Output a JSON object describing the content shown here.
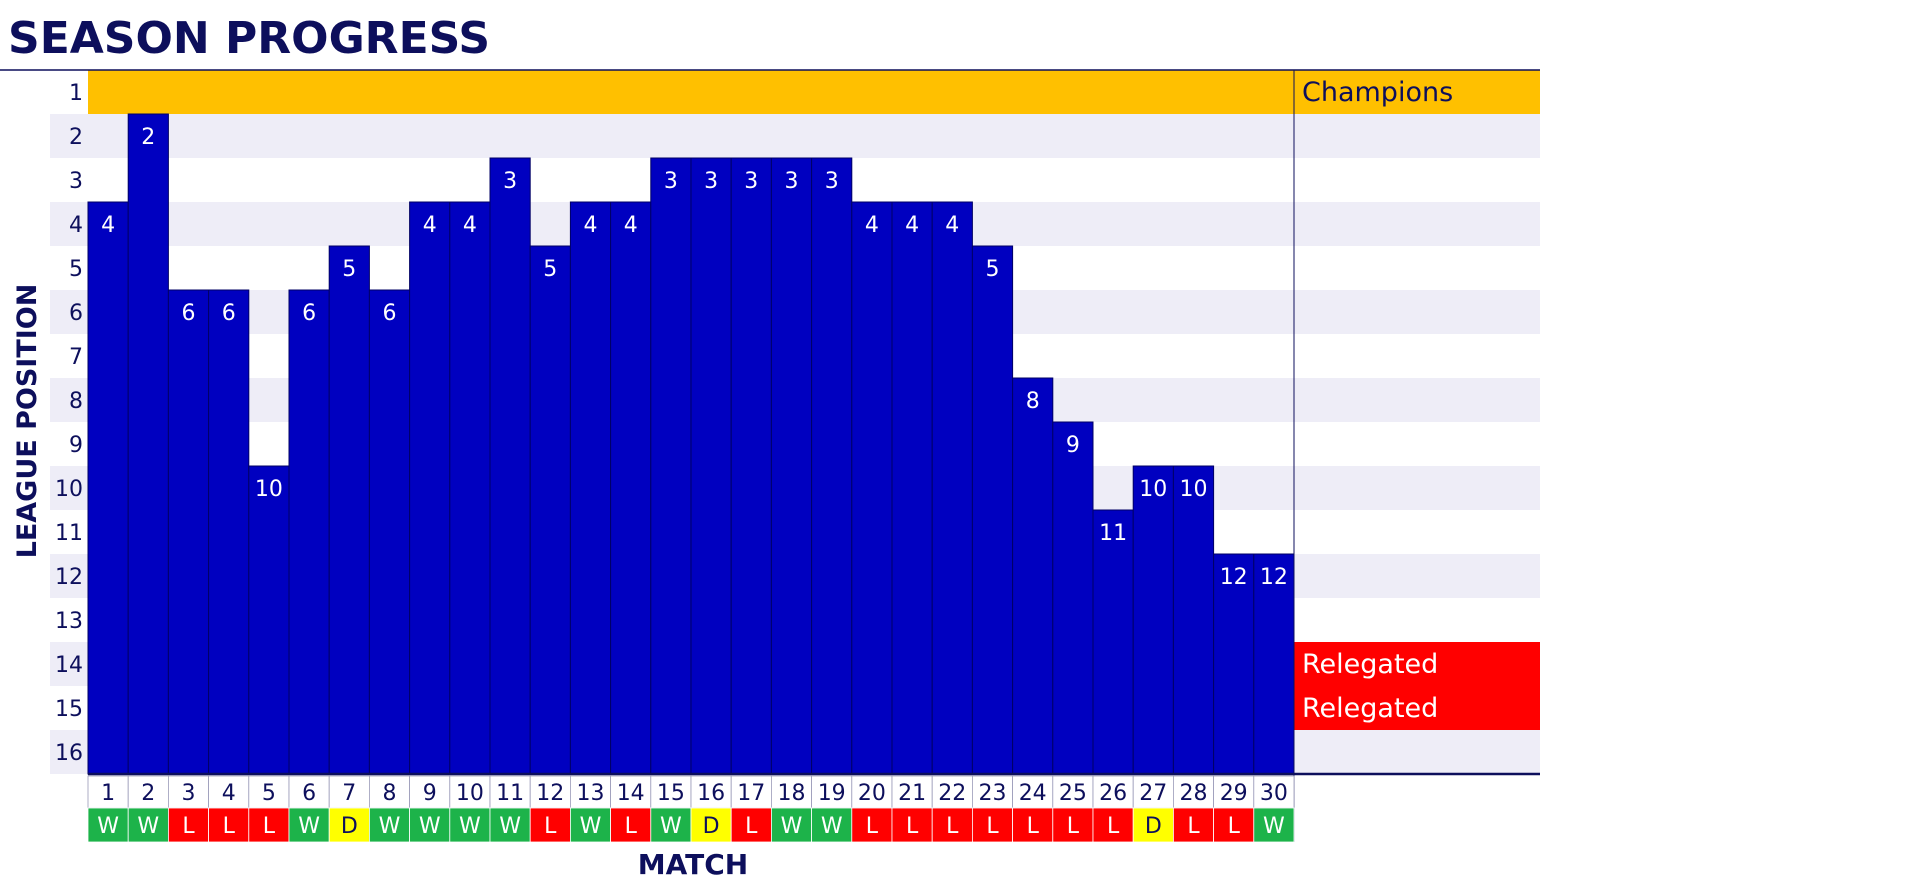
{
  "chart_data": {
    "type": "bar",
    "title": "SEASON PROGRESS",
    "xlabel": "MATCH",
    "ylabel": "LEAGUE POSITION",
    "y_ticks": [
      1,
      2,
      3,
      4,
      5,
      6,
      7,
      8,
      9,
      10,
      11,
      12,
      13,
      14,
      15,
      16
    ],
    "y_inverted": true,
    "ylim": [
      16,
      1
    ],
    "categories": [
      1,
      2,
      3,
      4,
      5,
      6,
      7,
      8,
      9,
      10,
      11,
      12,
      13,
      14,
      15,
      16,
      17,
      18,
      19,
      20,
      21,
      22,
      23,
      24,
      25,
      26,
      27,
      28,
      29,
      30
    ],
    "values": [
      4,
      2,
      6,
      6,
      10,
      6,
      5,
      6,
      4,
      4,
      3,
      5,
      4,
      4,
      3,
      3,
      3,
      3,
      3,
      4,
      4,
      4,
      5,
      8,
      9,
      11,
      10,
      10,
      12,
      12
    ],
    "results": [
      "W",
      "W",
      "L",
      "L",
      "L",
      "W",
      "D",
      "W",
      "W",
      "W",
      "W",
      "L",
      "W",
      "L",
      "W",
      "D",
      "L",
      "W",
      "W",
      "L",
      "L",
      "L",
      "L",
      "L",
      "L",
      "L",
      "D",
      "L",
      "L",
      "W"
    ],
    "zones": [
      {
        "positions": [
          1
        ],
        "label": "Champions",
        "color": "#ffc000",
        "text_color": "#0d0f5c"
      },
      {
        "positions": [
          14
        ],
        "label": "Relegated",
        "color": "#ff0000",
        "text_color": "#ffffff"
      },
      {
        "positions": [
          15
        ],
        "label": "Relegated",
        "color": "#ff0000",
        "text_color": "#ffffff"
      }
    ],
    "colors": {
      "bar": "#0000c0",
      "bar_edge": "#000066",
      "band": "#eeedf7",
      "text": "#0d0f5c",
      "win": "#1db34a",
      "draw": "#ffff00",
      "loss": "#ff0000"
    },
    "grid": "alternating row bands",
    "legend": "none"
  }
}
